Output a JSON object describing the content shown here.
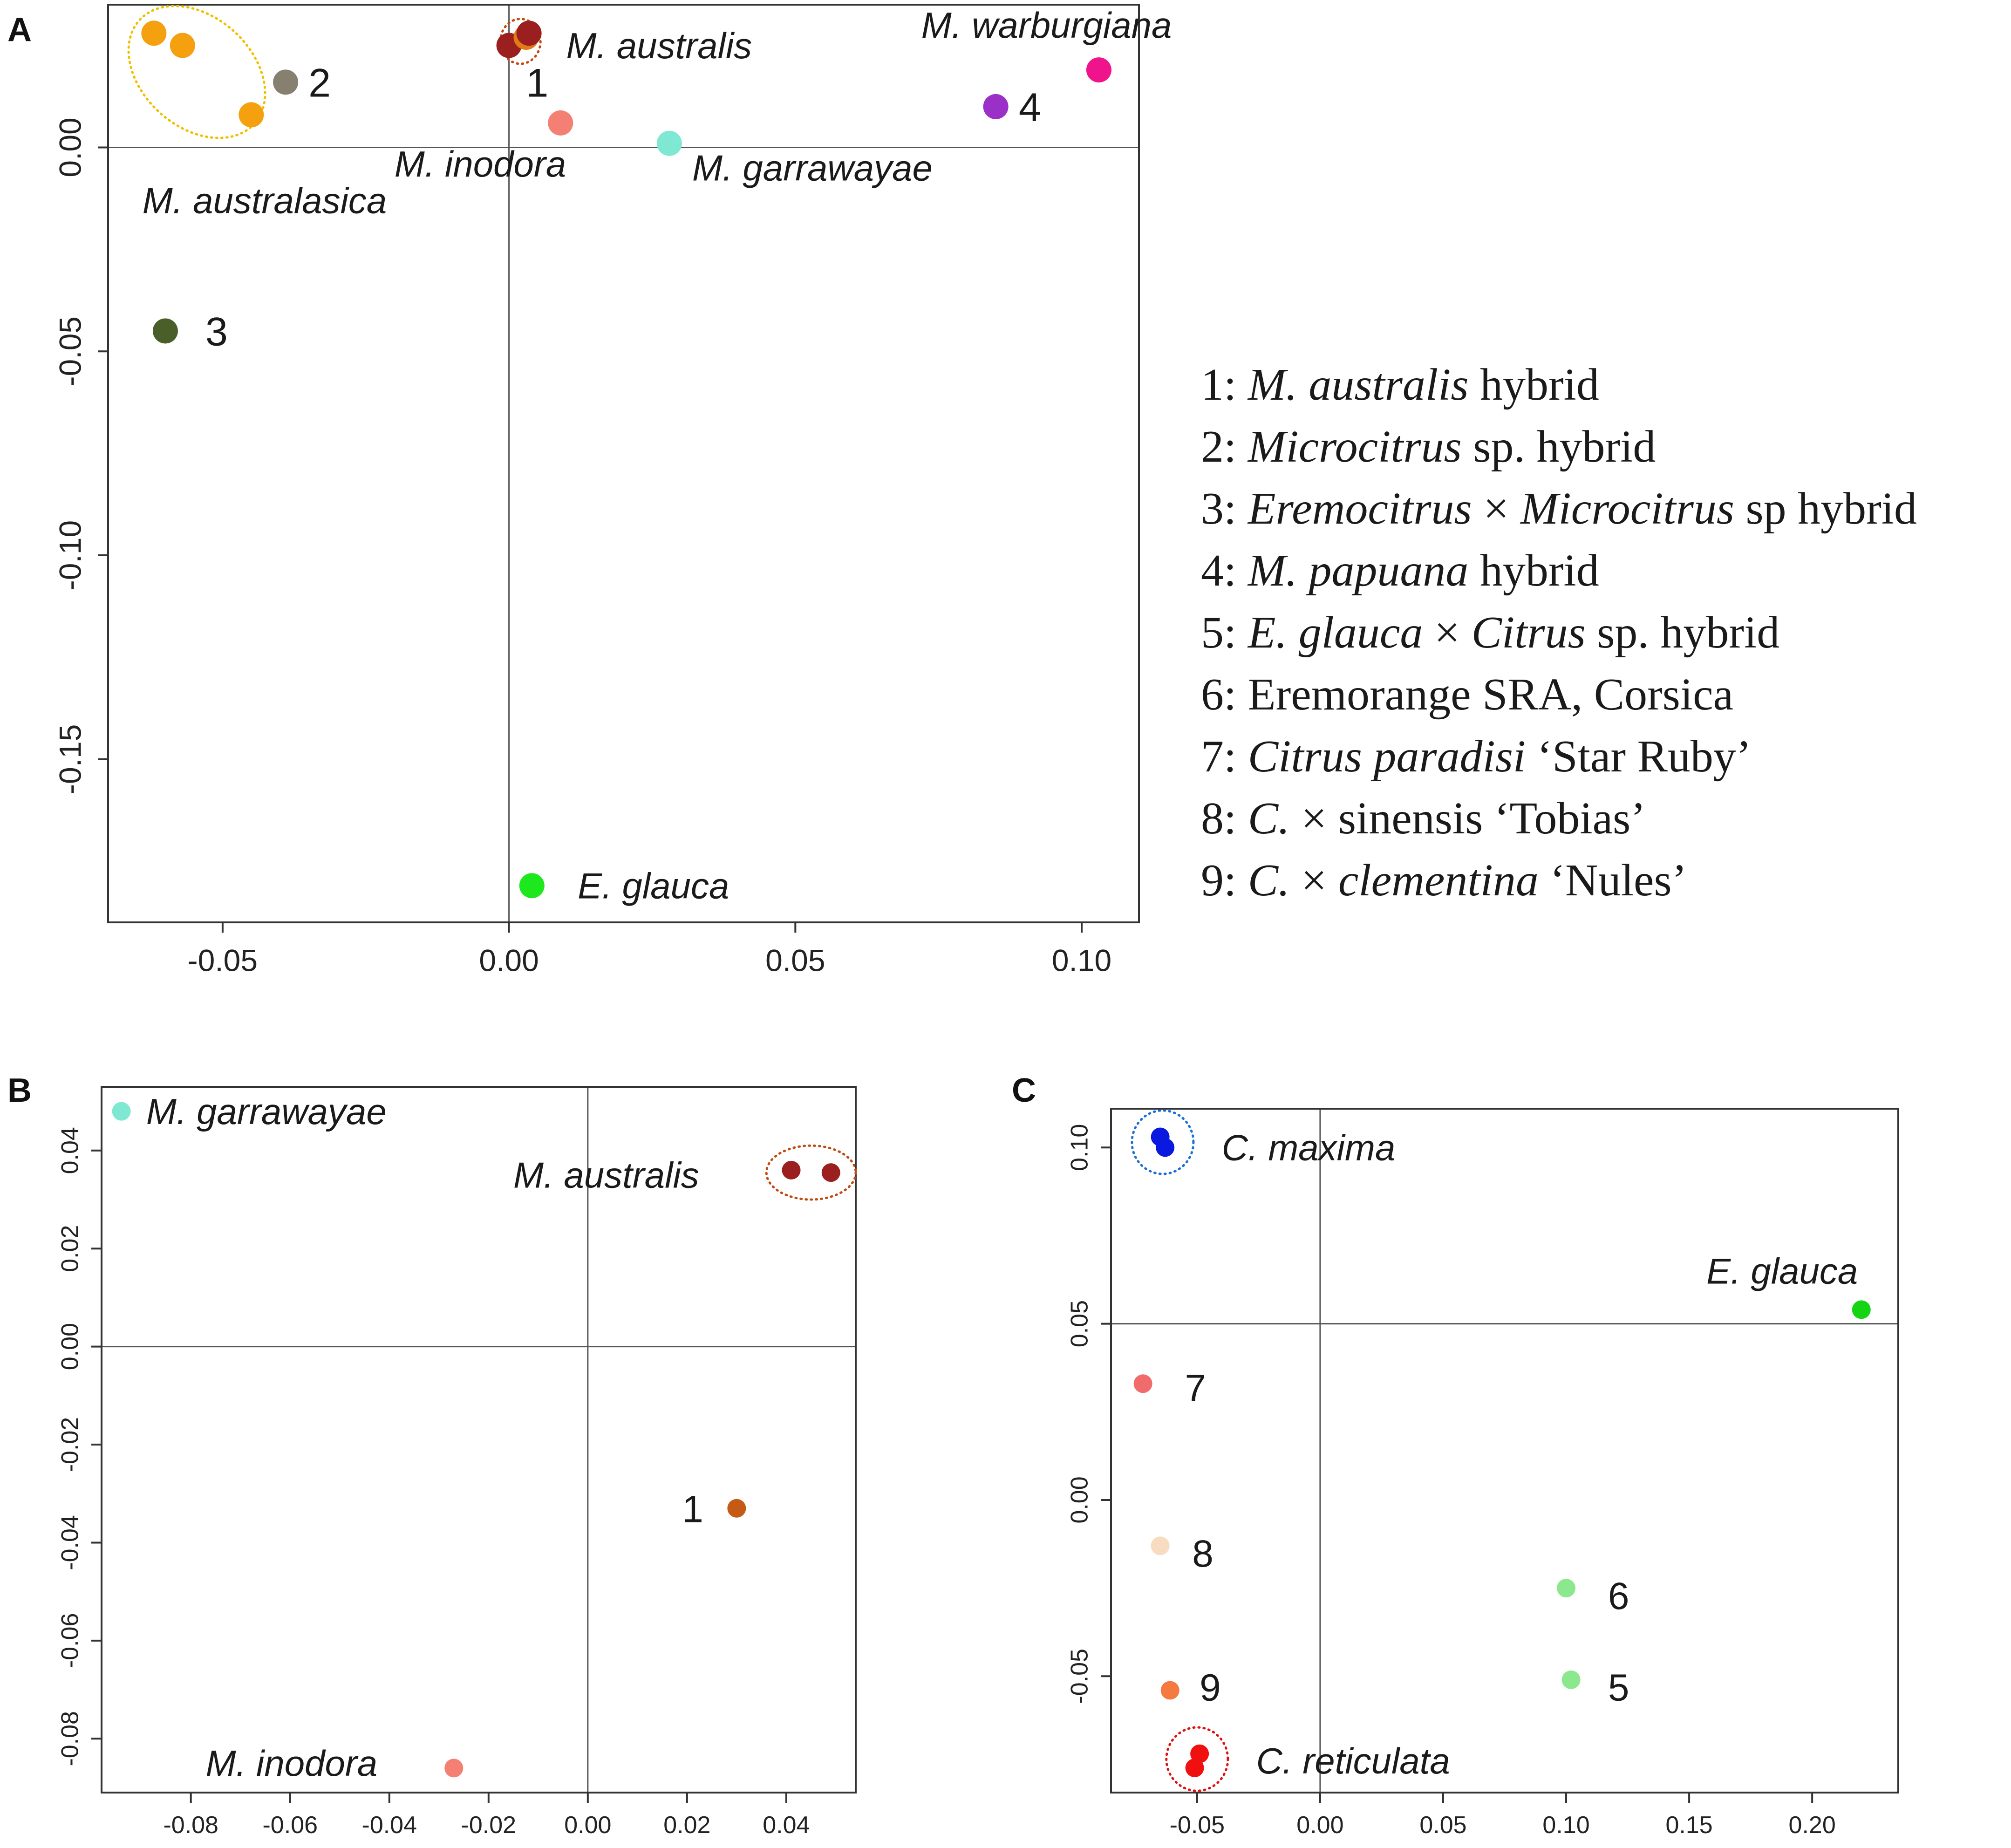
{
  "chart_data": [
    {
      "panel": "A",
      "type": "scatter",
      "xlim": [
        -0.07,
        0.11
      ],
      "ylim": [
        -0.19,
        0.035
      ],
      "x_ticks": [
        -0.05,
        0.0,
        0.05,
        0.1
      ],
      "x_tick_labels": [
        "-0.05",
        "0.00",
        "0.05",
        "0.10"
      ],
      "y_ticks": [
        0.0,
        -0.05,
        -0.1,
        -0.15
      ],
      "y_tick_labels": [
        "0.00",
        "-0.05",
        "-0.10",
        "-0.15"
      ],
      "reference_lines": {
        "x": 0.0,
        "y": 0.0
      },
      "points": [
        {
          "x": -0.062,
          "y": 0.028,
          "color": "#f5a00e",
          "group": "M. australasica"
        },
        {
          "x": -0.057,
          "y": 0.025,
          "color": "#f5a00e",
          "group": "M. australasica"
        },
        {
          "x": -0.045,
          "y": 0.008,
          "color": "#f5a00e",
          "group": "M. australasica"
        },
        {
          "x": -0.039,
          "y": 0.016,
          "color": "#878070",
          "group": "2"
        },
        {
          "x": -0.06,
          "y": -0.045,
          "color": "#4a5e2a",
          "group": "3"
        },
        {
          "x": 0.0,
          "y": 0.025,
          "color": "#9b1f1f",
          "group": "M. australis"
        },
        {
          "x": 0.003,
          "y": 0.027,
          "color": "#e07b17",
          "group": "1"
        },
        {
          "x": 0.0035,
          "y": 0.028,
          "color": "#9b1f1f",
          "group": "M. australis"
        },
        {
          "x": 0.009,
          "y": 0.006,
          "color": "#f47f73",
          "group": "M. inodora"
        },
        {
          "x": 0.028,
          "y": 0.001,
          "color": "#7fe8d2",
          "group": "M. garrawayae"
        },
        {
          "x": 0.085,
          "y": 0.01,
          "color": "#9b30c8",
          "group": "4"
        },
        {
          "x": 0.103,
          "y": 0.019,
          "color": "#f0148c",
          "group": "M. warburgiana"
        },
        {
          "x": 0.004,
          "y": -0.181,
          "color": "#1de81d",
          "group": "E. glauca"
        }
      ],
      "species_labels": [
        {
          "text": "M. warburgiana",
          "x": 0.072,
          "y": 0.03
        },
        {
          "text": "M. australis",
          "x": 0.01,
          "y": 0.025
        },
        {
          "text": "M. inodora",
          "x": -0.02,
          "y": -0.004
        },
        {
          "text": "M. garrawayae",
          "x": 0.032,
          "y": -0.005
        },
        {
          "text": "M. australasica",
          "x": -0.064,
          "y": -0.013
        },
        {
          "text": "E. glauca",
          "x": 0.012,
          "y": -0.181
        }
      ],
      "number_labels": [
        {
          "text": "1",
          "x": 0.003,
          "y": 0.016
        },
        {
          "text": "2",
          "x": -0.035,
          "y": 0.016
        },
        {
          "text": "3",
          "x": -0.053,
          "y": -0.045
        },
        {
          "text": "4",
          "x": 0.089,
          "y": 0.01
        }
      ],
      "groups": [
        {
          "name": "M. australasica",
          "x": -0.0545,
          "y": 0.0185,
          "rx": 0.0135,
          "ry": 0.0135,
          "rotate": 42,
          "color": "#f0c000"
        },
        {
          "name": "M. australis",
          "x": 0.002,
          "y": 0.026,
          "rx": 0.0035,
          "ry": 0.0055,
          "rotate": 0,
          "color": "#c04a10"
        }
      ]
    },
    {
      "panel": "B",
      "type": "scatter",
      "xlim": [
        -0.098,
        0.054
      ],
      "ylim": [
        -0.091,
        0.053
      ],
      "x_ticks": [
        -0.08,
        -0.06,
        -0.04,
        -0.02,
        0.0,
        0.02,
        0.04
      ],
      "x_tick_labels": [
        "-0.08",
        "-0.06",
        "-0.04",
        "-0.02",
        "0.00",
        "0.02",
        "0.04"
      ],
      "y_ticks": [
        0.04,
        0.02,
        0.0,
        -0.02,
        -0.04,
        -0.06,
        -0.08
      ],
      "y_tick_labels": [
        "0.04",
        "0.02",
        "0.00",
        "-0.02",
        "-0.04",
        "-0.06",
        "-0.08"
      ],
      "reference_lines": {
        "x": 0.0,
        "y": 0.0
      },
      "points": [
        {
          "x": -0.094,
          "y": 0.048,
          "color": "#7fe8d2",
          "group": "M. garrawayae"
        },
        {
          "x": 0.041,
          "y": 0.036,
          "color": "#9b1f1f",
          "group": "M. australis"
        },
        {
          "x": 0.049,
          "y": 0.0355,
          "color": "#9b1f1f",
          "group": "M. australis"
        },
        {
          "x": 0.03,
          "y": -0.033,
          "color": "#c45a14",
          "group": "1"
        },
        {
          "x": -0.027,
          "y": -0.086,
          "color": "#f47f73",
          "group": "M. inodora"
        }
      ],
      "species_labels": [
        {
          "text": "M. garrawayae",
          "x": -0.089,
          "y": 0.048
        },
        {
          "text": "M. australis",
          "x": -0.015,
          "y": 0.035
        },
        {
          "text": "M. inodora",
          "x": -0.077,
          "y": -0.085
        }
      ],
      "number_labels": [
        {
          "text": "1",
          "x": 0.019,
          "y": -0.033
        }
      ],
      "groups": [
        {
          "name": "M. australis",
          "x": 0.045,
          "y": 0.0355,
          "rx": 0.009,
          "ry": 0.0055,
          "rotate": 0,
          "color": "#c04a10"
        }
      ]
    },
    {
      "panel": "C",
      "type": "scatter",
      "xlim": [
        -0.085,
        0.235
      ],
      "ylim": [
        -0.083,
        0.111
      ],
      "x_ticks": [
        -0.05,
        0.0,
        0.05,
        0.1,
        0.15,
        0.2
      ],
      "x_tick_labels": [
        "-0.05",
        "0.00",
        "0.05",
        "0.10",
        "0.15",
        "0.20"
      ],
      "y_ticks": [
        0.1,
        0.05,
        0.0,
        -0.05
      ],
      "y_tick_labels": [
        "0.10",
        "0.05",
        "0.00",
        "-0.05"
      ],
      "reference_lines": {
        "x": 0.0,
        "y": 0.05
      },
      "points": [
        {
          "x": -0.065,
          "y": 0.103,
          "color": "#0a18e0",
          "group": "C. maxima"
        },
        {
          "x": -0.063,
          "y": 0.1,
          "color": "#0a18e0",
          "group": "C. maxima"
        },
        {
          "x": 0.22,
          "y": 0.054,
          "color": "#14d414",
          "group": "E. glauca"
        },
        {
          "x": -0.072,
          "y": 0.033,
          "color": "#f06b6b",
          "group": "7"
        },
        {
          "x": -0.065,
          "y": -0.013,
          "color": "#f7dcc0",
          "group": "8"
        },
        {
          "x": -0.061,
          "y": -0.054,
          "color": "#f47a40",
          "group": "9"
        },
        {
          "x": -0.049,
          "y": -0.072,
          "color": "#f01010",
          "group": "C. reticulata"
        },
        {
          "x": -0.051,
          "y": -0.076,
          "color": "#f01010",
          "group": "C. reticulata"
        },
        {
          "x": 0.1,
          "y": -0.025,
          "color": "#8ce88c",
          "group": "6"
        },
        {
          "x": 0.102,
          "y": -0.051,
          "color": "#8ce88c",
          "group": "5"
        }
      ],
      "species_labels": [
        {
          "text": "C. maxima",
          "x": -0.04,
          "y": 0.1
        },
        {
          "text": "E. glauca",
          "x": 0.157,
          "y": 0.065
        },
        {
          "text": "C. reticulata",
          "x": -0.026,
          "y": -0.074
        }
      ],
      "number_labels": [
        {
          "text": "7",
          "x": -0.055,
          "y": 0.032
        },
        {
          "text": "8",
          "x": -0.052,
          "y": -0.015
        },
        {
          "text": "9",
          "x": -0.049,
          "y": -0.053
        },
        {
          "text": "6",
          "x": 0.117,
          "y": -0.027
        },
        {
          "text": "5",
          "x": 0.117,
          "y": -0.053
        }
      ],
      "groups": [
        {
          "name": "C. maxima",
          "x": -0.064,
          "y": 0.1015,
          "rx": 0.0125,
          "ry": 0.009,
          "rotate": 0,
          "color": "#1a6ed8"
        },
        {
          "name": "C. reticulata",
          "x": -0.05,
          "y": -0.0735,
          "rx": 0.0125,
          "ry": 0.009,
          "rotate": 0,
          "color": "#e01010"
        }
      ]
    }
  ],
  "panel_letters": {
    "a": "A",
    "b": "B",
    "c": "C"
  },
  "legend": [
    {
      "num": "1:",
      "parts": [
        {
          "text": "M. australis",
          "italic": true
        },
        {
          "text": " hybrid",
          "italic": false
        }
      ]
    },
    {
      "num": "2:",
      "parts": [
        {
          "text": "Microcitrus",
          "italic": true
        },
        {
          "text": " sp. hybrid",
          "italic": false
        }
      ]
    },
    {
      "num": "3:",
      "parts": [
        {
          "text": "Eremocitrus",
          "italic": true
        },
        {
          "text": " × ",
          "italic": false
        },
        {
          "text": "Microcitrus",
          "italic": true
        },
        {
          "text": " sp hybrid",
          "italic": false
        }
      ]
    },
    {
      "num": "4:",
      "parts": [
        {
          "text": "M. papuana",
          "italic": true
        },
        {
          "text": " hybrid",
          "italic": false
        }
      ]
    },
    {
      "num": "5:",
      "parts": [
        {
          "text": "E. glauca",
          "italic": true
        },
        {
          "text": " × ",
          "italic": false
        },
        {
          "text": "Citrus",
          "italic": true
        },
        {
          "text": " sp. hybrid",
          "italic": false
        }
      ]
    },
    {
      "num": "6:",
      "parts": [
        {
          "text": "Eremorange SRA, Corsica",
          "italic": false
        }
      ]
    },
    {
      "num": "7:",
      "parts": [
        {
          "text": "Citrus paradisi",
          "italic": true
        },
        {
          "text": " ‘Star Ruby’",
          "italic": false
        }
      ]
    },
    {
      "num": "8:",
      "parts": [
        {
          "text": "C.",
          "italic": true
        },
        {
          "text": " × sinensis ‘Tobias’",
          "italic": false
        }
      ]
    },
    {
      "num": "9:",
      "parts": [
        {
          "text": "C.",
          "italic": true
        },
        {
          "text": " × ",
          "italic": false
        },
        {
          "text": "clementina",
          "italic": true
        },
        {
          "text": " ‘Nules’",
          "italic": false
        }
      ]
    }
  ]
}
